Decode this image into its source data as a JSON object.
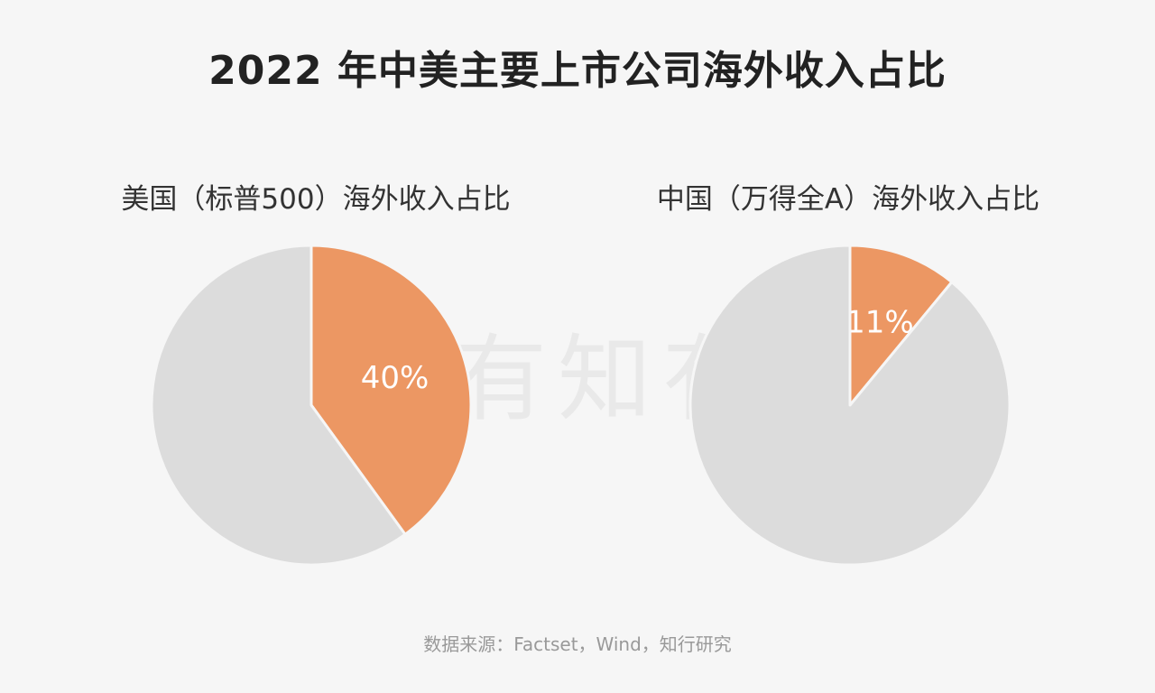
{
  "title": "2022 年中美主要上市公司海外收入占比",
  "watermark_text": "有知有行",
  "source": "数据来源：Factset，Wind，知行研究",
  "colors": {
    "highlight": "#ec9763",
    "rest": "#dcdcdc",
    "background": "#f6f6f6",
    "label": "#ffffff"
  },
  "chart_data": [
    {
      "type": "pie",
      "title": "美国（标普500）海外收入占比",
      "slices": [
        {
          "value": 40,
          "label": "40%",
          "color": "#ec9763"
        },
        {
          "value": 60,
          "label": "",
          "color": "#dcdcdc"
        }
      ]
    },
    {
      "type": "pie",
      "title": "中国（万得全A）海外收入占比",
      "slices": [
        {
          "value": 11,
          "label": "11%",
          "color": "#ec9763"
        },
        {
          "value": 89,
          "label": "",
          "color": "#dcdcdc"
        }
      ]
    }
  ]
}
